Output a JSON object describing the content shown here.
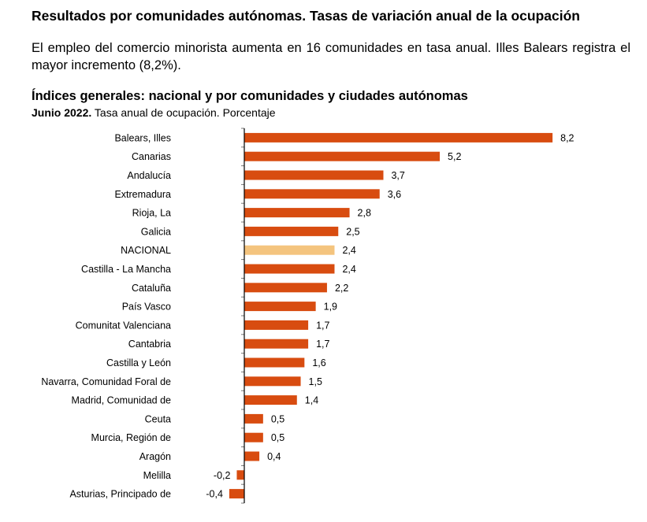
{
  "header": {
    "title": "Resultados por comunidades autónomas. Tasas de variación anual de la ocupación",
    "lead": "El empleo del comercio minorista aumenta en 16 comunidades en tasa anual. Illes Balears registra el mayor incremento (8,2%)."
  },
  "chart_data": {
    "type": "bar",
    "orientation": "horizontal",
    "title": "Índices generales: nacional y por comunidades y ciudades autónomas",
    "subtitle_bold": "Junio 2022.",
    "subtitle": "Tasa anual de ocupación. Porcentaje",
    "categories": [
      "Balears, Illes",
      "Canarias",
      "Andalucía",
      "Extremadura",
      "Rioja, La",
      "Galicia",
      "NACIONAL",
      "Castilla - La Mancha",
      "Cataluña",
      "País Vasco",
      "Comunitat Valenciana",
      "Cantabria",
      "Castilla y León",
      "Navarra, Comunidad Foral de",
      "Madrid, Comunidad de",
      "Ceuta",
      "Murcia, Región de",
      "Aragón",
      "Melilla",
      "Asturias, Principado de"
    ],
    "values": [
      8.2,
      5.2,
      3.7,
      3.6,
      2.8,
      2.5,
      2.4,
      2.4,
      2.2,
      1.9,
      1.7,
      1.7,
      1.6,
      1.5,
      1.4,
      0.5,
      0.5,
      0.4,
      -0.2,
      -0.4
    ],
    "data_labels": [
      "8,2",
      "5,2",
      "3,7",
      "3,6",
      "2,8",
      "2,5",
      "2,4",
      "2,4",
      "2,2",
      "1,9",
      "1,7",
      "1,7",
      "1,6",
      "1,5",
      "1,4",
      "0,5",
      "0,5",
      "0,4",
      "-0,2",
      "-0,4"
    ],
    "highlight": "NACIONAL",
    "colors": {
      "bar": "#d84c10",
      "highlight": "#f4c47e"
    },
    "grid": false
  }
}
